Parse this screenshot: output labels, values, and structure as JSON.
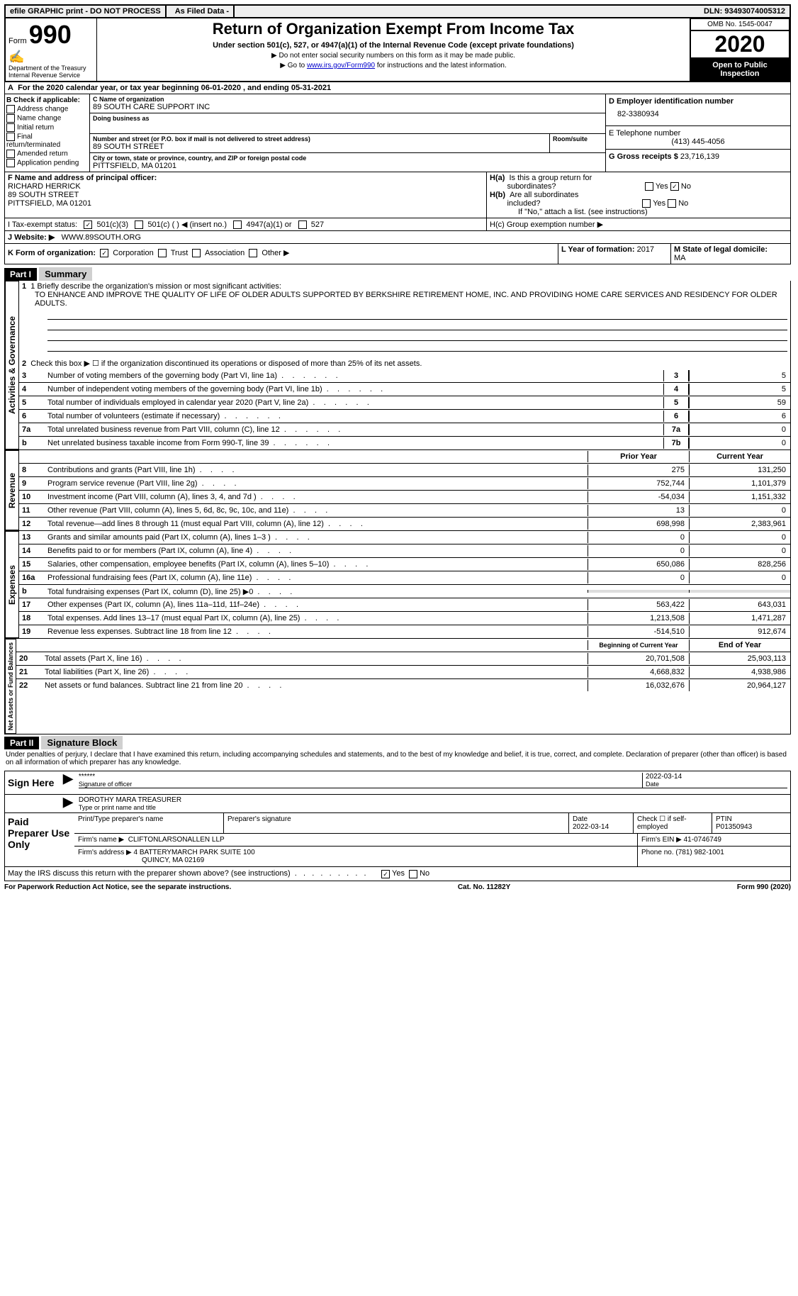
{
  "topbar": {
    "efile": "efile GRAPHIC print - DO NOT PROCESS",
    "asfiled": "As Filed Data -",
    "dln": "DLN: 93493074005312"
  },
  "header": {
    "form_prefix": "Form",
    "form_number": "990",
    "dept1": "Department of the Treasury",
    "dept2": "Internal Revenue Service",
    "title": "Return of Organization Exempt From Income Tax",
    "subtitle": "Under section 501(c), 527, or 4947(a)(1) of the Internal Revenue Code (except private foundations)",
    "note1": "▶ Do not enter social security numbers on this form as it may be made public.",
    "note2_pre": "▶ Go to ",
    "note2_link": "www.irs.gov/Form990",
    "note2_post": " for instructions and the latest information.",
    "omb": "OMB No. 1545-0047",
    "year": "2020",
    "open": "Open to Public Inspection"
  },
  "lineA": "For the 2020 calendar year, or tax year beginning 06-01-2020   , and ending 05-31-2021",
  "boxB": {
    "title": "B Check if applicable:",
    "items": [
      "Address change",
      "Name change",
      "Initial return",
      "Final return/terminated",
      "Amended return",
      "Application pending"
    ]
  },
  "boxC": {
    "name_label": "C Name of organization",
    "name": "89 SOUTH CARE SUPPORT INC",
    "dba_label": "Doing business as",
    "street_label": "Number and street (or P.O. box if mail is not delivered to street address)",
    "room_label": "Room/suite",
    "street": "89 SOUTH STREET",
    "city_label": "City or town, state or province, country, and ZIP or foreign postal code",
    "city": "PITTSFIELD, MA  01201"
  },
  "boxD": {
    "label": "D Employer identification number",
    "value": "82-3380934"
  },
  "boxE": {
    "label": "E Telephone number",
    "value": "(413) 445-4056"
  },
  "boxG": {
    "label": "G Gross receipts $",
    "value": "23,716,139"
  },
  "boxF": {
    "label": "F  Name and address of principal officer:",
    "name": "RICHARD HERRICK",
    "street": "89 SOUTH STREET",
    "city": "PITTSFIELD, MA  01201"
  },
  "boxH": {
    "ha": "H(a)  Is this a group return for subordinates?",
    "hb": "H(b)  Are all subordinates included?",
    "hb_note": "If \"No,\" attach a list. (see instructions)",
    "hc": "H(c)  Group exemption number ▶"
  },
  "lineI": {
    "label": "I   Tax-exempt status:",
    "opt1": "501(c)(3)",
    "opt2": "501(c) (   ) ◀ (insert no.)",
    "opt3": "4947(a)(1) or",
    "opt4": "527"
  },
  "lineJ": {
    "label": "J   Website: ▶",
    "value": "WWW.89SOUTH.ORG"
  },
  "lineK": "K Form of organization:",
  "lineK_opts": [
    "Corporation",
    "Trust",
    "Association",
    "Other ▶"
  ],
  "lineL": {
    "label": "L Year of formation:",
    "value": "2017"
  },
  "lineM": {
    "label": "M State of legal domicile:",
    "value": "MA"
  },
  "part1": {
    "header": "Part I",
    "title": "Summary"
  },
  "mission": {
    "line1_label": "1  Briefly describe the organization's mission or most significant activities:",
    "text": "TO ENHANCE AND IMPROVE THE QUALITY OF LIFE OF OLDER ADULTS SUPPORTED BY BERKSHIRE RETIREMENT HOME, INC. AND PROVIDING HOME CARE SERVICES AND RESIDENCY FOR OLDER ADULTS."
  },
  "governance": {
    "label": "Activities & Governance",
    "line2": "Check this box ▶ ☐ if the organization discontinued its operations or disposed of more than 25% of its net assets.",
    "lines": [
      {
        "n": "3",
        "text": "Number of voting members of the governing body (Part VI, line 1a)",
        "box": "3",
        "val": "5"
      },
      {
        "n": "4",
        "text": "Number of independent voting members of the governing body (Part VI, line 1b)",
        "box": "4",
        "val": "5"
      },
      {
        "n": "5",
        "text": "Total number of individuals employed in calendar year 2020 (Part V, line 2a)",
        "box": "5",
        "val": "59"
      },
      {
        "n": "6",
        "text": "Total number of volunteers (estimate if necessary)",
        "box": "6",
        "val": "6"
      },
      {
        "n": "7a",
        "text": "Total unrelated business revenue from Part VIII, column (C), line 12",
        "box": "7a",
        "val": "0"
      },
      {
        "n": "b",
        "text": "Net unrelated business taxable income from Form 990-T, line 39",
        "box": "7b",
        "val": "0"
      }
    ]
  },
  "revenue": {
    "label": "Revenue",
    "header_prior": "Prior Year",
    "header_current": "Current Year",
    "lines": [
      {
        "n": "8",
        "text": "Contributions and grants (Part VIII, line 1h)",
        "prior": "275",
        "curr": "131,250"
      },
      {
        "n": "9",
        "text": "Program service revenue (Part VIII, line 2g)",
        "prior": "752,744",
        "curr": "1,101,379"
      },
      {
        "n": "10",
        "text": "Investment income (Part VIII, column (A), lines 3, 4, and 7d )",
        "prior": "-54,034",
        "curr": "1,151,332"
      },
      {
        "n": "11",
        "text": "Other revenue (Part VIII, column (A), lines 5, 6d, 8c, 9c, 10c, and 11e)",
        "prior": "13",
        "curr": "0"
      },
      {
        "n": "12",
        "text": "Total revenue—add lines 8 through 11 (must equal Part VIII, column (A), line 12)",
        "prior": "698,998",
        "curr": "2,383,961"
      }
    ]
  },
  "expenses": {
    "label": "Expenses",
    "lines": [
      {
        "n": "13",
        "text": "Grants and similar amounts paid (Part IX, column (A), lines 1–3 )",
        "prior": "0",
        "curr": "0"
      },
      {
        "n": "14",
        "text": "Benefits paid to or for members (Part IX, column (A), line 4)",
        "prior": "0",
        "curr": "0"
      },
      {
        "n": "15",
        "text": "Salaries, other compensation, employee benefits (Part IX, column (A), lines 5–10)",
        "prior": "650,086",
        "curr": "828,256"
      },
      {
        "n": "16a",
        "text": "Professional fundraising fees (Part IX, column (A), line 11e)",
        "prior": "0",
        "curr": "0"
      },
      {
        "n": "b",
        "text": "Total fundraising expenses (Part IX, column (D), line 25) ▶0",
        "prior": "",
        "curr": ""
      },
      {
        "n": "17",
        "text": "Other expenses (Part IX, column (A), lines 11a–11d, 11f–24e)",
        "prior": "563,422",
        "curr": "643,031"
      },
      {
        "n": "18",
        "text": "Total expenses. Add lines 13–17 (must equal Part IX, column (A), line 25)",
        "prior": "1,213,508",
        "curr": "1,471,287"
      },
      {
        "n": "19",
        "text": "Revenue less expenses. Subtract line 18 from line 12",
        "prior": "-514,510",
        "curr": "912,674"
      }
    ]
  },
  "netassets": {
    "label": "Net Assets or Fund Balances",
    "header_begin": "Beginning of Current Year",
    "header_end": "End of Year",
    "lines": [
      {
        "n": "20",
        "text": "Total assets (Part X, line 16)",
        "prior": "20,701,508",
        "curr": "25,903,113"
      },
      {
        "n": "21",
        "text": "Total liabilities (Part X, line 26)",
        "prior": "4,668,832",
        "curr": "4,938,986"
      },
      {
        "n": "22",
        "text": "Net assets or fund balances. Subtract line 21 from line 20",
        "prior": "16,032,676",
        "curr": "20,964,127"
      }
    ]
  },
  "part2": {
    "header": "Part II",
    "title": "Signature Block",
    "declaration": "Under penalties of perjury, I declare that I have examined this return, including accompanying schedules and statements, and to the best of my knowledge and belief, it is true, correct, and complete. Declaration of preparer (other than officer) is based on all information of which preparer has any knowledge."
  },
  "sign": {
    "label": "Sign Here",
    "stars": "******",
    "sig_label": "Signature of officer",
    "date": "2022-03-14",
    "date_label": "Date",
    "name": "DOROTHY MARA TREASURER",
    "name_label": "Type or print name and title"
  },
  "preparer": {
    "label": "Paid Preparer Use Only",
    "print_label": "Print/Type preparer's name",
    "sig_label": "Preparer's signature",
    "date_label": "Date",
    "date": "2022-03-14",
    "check_label": "Check ☐ if self-employed",
    "ptin_label": "PTIN",
    "ptin": "P01350943",
    "firm_name_label": "Firm's name     ▶",
    "firm_name": "CLIFTONLARSONALLEN LLP",
    "firm_ein_label": "Firm's EIN ▶",
    "firm_ein": "41-0746749",
    "firm_addr_label": "Firm's address ▶",
    "firm_addr1": "4 BATTERYMARCH PARK SUITE 100",
    "firm_addr2": "QUINCY, MA  02169",
    "phone_label": "Phone no.",
    "phone": "(781) 982-1001"
  },
  "discuss": "May the IRS discuss this return with the preparer shown above? (see instructions)",
  "footer": {
    "left": "For Paperwork Reduction Act Notice, see the separate instructions.",
    "mid": "Cat. No. 11282Y",
    "right": "Form 990 (2020)"
  }
}
